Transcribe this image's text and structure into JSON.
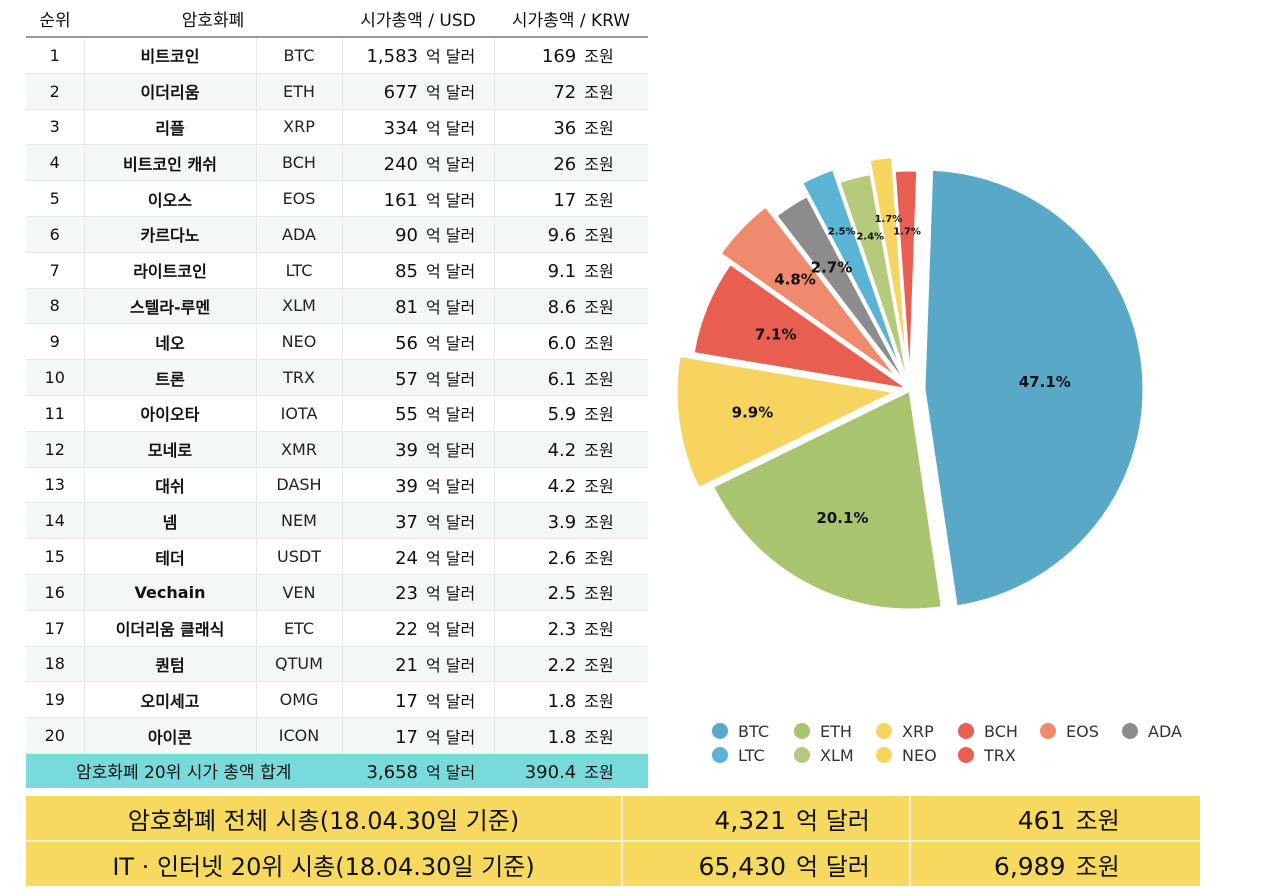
{
  "table": {
    "headers": {
      "rank": "순위",
      "name": "암호화폐",
      "usd": "시가총액 / USD",
      "krw": "시가총액 / KRW"
    },
    "unit_usd": "억 달러",
    "unit_krw": "조원",
    "rows": [
      {
        "rank": "1",
        "name": "비트코인",
        "symbol": "BTC",
        "usd": "1,583",
        "krw": "169"
      },
      {
        "rank": "2",
        "name": "이더리움",
        "symbol": "ETH",
        "usd": "677",
        "krw": "72"
      },
      {
        "rank": "3",
        "name": "리플",
        "symbol": "XRP",
        "usd": "334",
        "krw": "36"
      },
      {
        "rank": "4",
        "name": "비트코인 캐쉬",
        "symbol": "BCH",
        "usd": "240",
        "krw": "26"
      },
      {
        "rank": "5",
        "name": "이오스",
        "symbol": "EOS",
        "usd": "161",
        "krw": "17"
      },
      {
        "rank": "6",
        "name": "카르다노",
        "symbol": "ADA",
        "usd": "90",
        "krw": "9.6"
      },
      {
        "rank": "7",
        "name": "라이트코인",
        "symbol": "LTC",
        "usd": "85",
        "krw": "9.1"
      },
      {
        "rank": "8",
        "name": "스텔라-루멘",
        "symbol": "XLM",
        "usd": "81",
        "krw": "8.6"
      },
      {
        "rank": "9",
        "name": "네오",
        "symbol": "NEO",
        "usd": "56",
        "krw": "6.0"
      },
      {
        "rank": "10",
        "name": "트론",
        "symbol": "TRX",
        "usd": "57",
        "krw": "6.1"
      },
      {
        "rank": "11",
        "name": "아이오타",
        "symbol": "IOTA",
        "usd": "55",
        "krw": "5.9"
      },
      {
        "rank": "12",
        "name": "모네로",
        "symbol": "XMR",
        "usd": "39",
        "krw": "4.2"
      },
      {
        "rank": "13",
        "name": "대쉬",
        "symbol": "DASH",
        "usd": "39",
        "krw": "4.2"
      },
      {
        "rank": "14",
        "name": "넴",
        "symbol": "NEM",
        "usd": "37",
        "krw": "3.9"
      },
      {
        "rank": "15",
        "name": "테더",
        "symbol": "USDT",
        "usd": "24",
        "krw": "2.6"
      },
      {
        "rank": "16",
        "name": "Vechain",
        "symbol": "VEN",
        "usd": "23",
        "krw": "2.5"
      },
      {
        "rank": "17",
        "name": "이더리움 클래식",
        "symbol": "ETC",
        "usd": "22",
        "krw": "2.3"
      },
      {
        "rank": "18",
        "name": "퀀텀",
        "symbol": "QTUM",
        "usd": "21",
        "krw": "2.2"
      },
      {
        "rank": "19",
        "name": "오미세고",
        "symbol": "OMG",
        "usd": "17",
        "krw": "1.8"
      },
      {
        "rank": "20",
        "name": "아이콘",
        "symbol": "ICON",
        "usd": "17",
        "krw": "1.8"
      }
    ],
    "total": {
      "label": "암호화폐 20위 시가 총액 합계",
      "usd": "3,658",
      "krw": "390.4"
    }
  },
  "summary": [
    {
      "label": "암호화폐 전체 시총(18.04.30일 기준)",
      "usd": "4,321",
      "usd_unit": "억 달러",
      "krw": "461",
      "krw_unit": "조원"
    },
    {
      "label": "IT  ·  인터넷 20위 시총(18.04.30일 기준)",
      "usd": "65,430",
      "usd_unit": "억 달러",
      "krw": "6,989",
      "krw_unit": "조원"
    }
  ],
  "chart_data": {
    "type": "pie",
    "title": "",
    "slices": [
      {
        "name": "BTC",
        "value": 47.1,
        "label": "47.1%",
        "color": "#5aa8c8",
        "exploded": true
      },
      {
        "name": "ETH",
        "value": 20.1,
        "label": "20.1%",
        "color": "#a9c46e",
        "exploded": false
      },
      {
        "name": "XRP",
        "value": 9.9,
        "label": "9.9%",
        "color": "#f7d35f",
        "exploded": true
      },
      {
        "name": "BCH",
        "value": 7.1,
        "label": "7.1%",
        "color": "#e85f52",
        "exploded": false
      },
      {
        "name": "EOS",
        "value": 4.8,
        "label": "4.8%",
        "color": "#f08a6c",
        "exploded": true
      },
      {
        "name": "ADA",
        "value": 2.7,
        "label": "2.7%",
        "color": "#8c8c8c",
        "exploded": false
      },
      {
        "name": "LTC",
        "value": 2.5,
        "label": "2.5%",
        "color": "#5bb3d6",
        "exploded": true
      },
      {
        "name": "XLM",
        "value": 2.4,
        "label": "2.4%",
        "color": "#b5ca7b",
        "exploded": false
      },
      {
        "name": "NEO",
        "value": 1.7,
        "label": "1.7%",
        "color": "#f7d35f",
        "exploded": true
      },
      {
        "name": "TRX",
        "value": 1.7,
        "label": "1.7%",
        "color": "#e85f52",
        "exploded": false
      }
    ],
    "legend_position": "bottom"
  }
}
